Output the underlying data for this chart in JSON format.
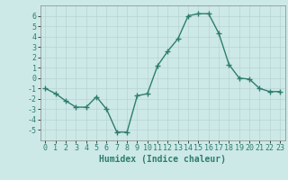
{
  "x": [
    0,
    1,
    2,
    3,
    4,
    5,
    6,
    7,
    8,
    9,
    10,
    11,
    12,
    13,
    14,
    15,
    16,
    17,
    18,
    19,
    20,
    21,
    22,
    23
  ],
  "y": [
    -1,
    -1.5,
    -2.2,
    -2.8,
    -2.8,
    -1.8,
    -3.0,
    -5.2,
    -5.2,
    -1.7,
    -1.5,
    1.2,
    2.6,
    3.8,
    6.0,
    6.2,
    6.2,
    4.3,
    1.3,
    0.0,
    -0.1,
    -1.0,
    -1.3,
    -1.3
  ],
  "line_color": "#2e7d6e",
  "marker": "+",
  "marker_size": 4,
  "marker_linewidth": 1.0,
  "line_width": 1.0,
  "bg_color": "#cce9e7",
  "grid_color": "#b8d4d2",
  "xlabel": "Humidex (Indice chaleur)",
  "xlabel_fontsize": 7,
  "tick_fontsize": 6,
  "ylim": [
    -6,
    7
  ],
  "xlim": [
    -0.5,
    23.5
  ],
  "yticks": [
    -5,
    -4,
    -3,
    -2,
    -1,
    0,
    1,
    2,
    3,
    4,
    5,
    6
  ],
  "xticks": [
    0,
    1,
    2,
    3,
    4,
    5,
    6,
    7,
    8,
    9,
    10,
    11,
    12,
    13,
    14,
    15,
    16,
    17,
    18,
    19,
    20,
    21,
    22,
    23
  ]
}
